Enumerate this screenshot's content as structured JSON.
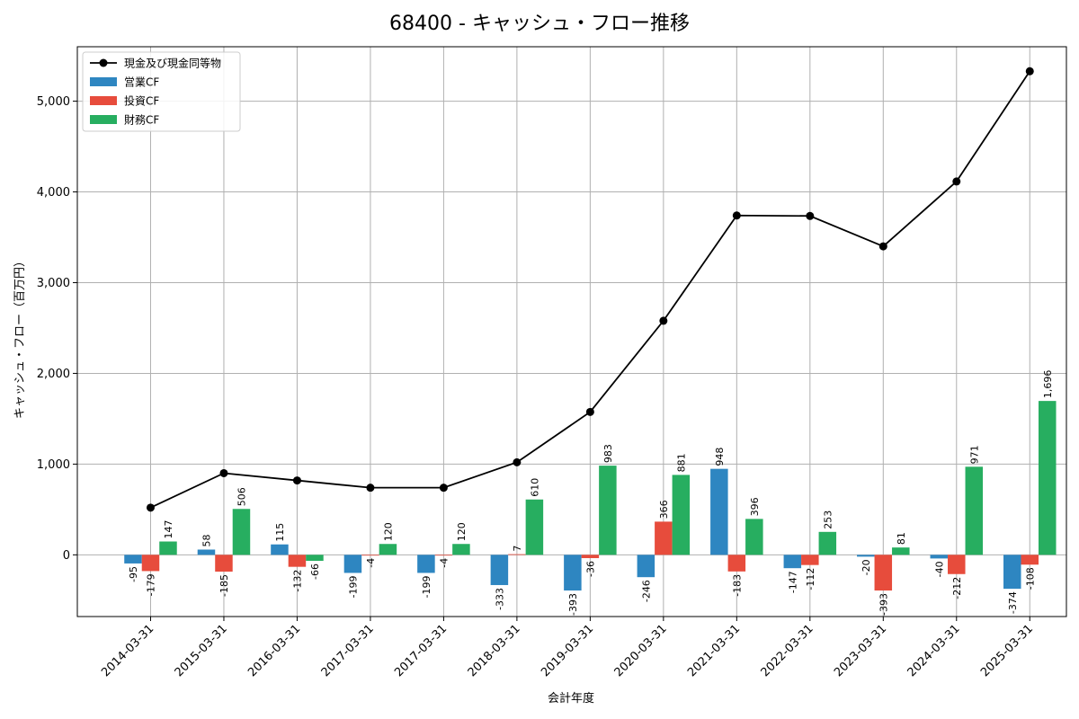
{
  "chart_data": {
    "type": "bar+line",
    "title": "68400 - キャッシュ・フロー推移",
    "xlabel": "会計年度",
    "ylabel": "キャッシュ・フロー（百万円）",
    "ylim": [
      -680,
      5600
    ],
    "yticks": [
      0,
      1000,
      2000,
      3000,
      4000,
      5000
    ],
    "ytick_labels": [
      "0",
      "1,000",
      "2,000",
      "3,000",
      "4,000",
      "5,000"
    ],
    "grid": true,
    "legend_position": "top-left",
    "categories": [
      "2014-03-31",
      "2015-03-31",
      "2016-03-31",
      "2017-03-31",
      "2017-03-31",
      "2018-03-31",
      "2019-03-31",
      "2020-03-31",
      "2021-03-31",
      "2022-03-31",
      "2023-03-31",
      "2024-03-31",
      "2025-03-31"
    ],
    "series": [
      {
        "name": "営業CF",
        "kind": "bar",
        "color": "#2e86c1",
        "values": [
          -95,
          58,
          115,
          -199,
          -199,
          -333,
          -393,
          -246,
          948,
          -147,
          -20,
          -40,
          -374
        ],
        "labels": [
          "-95",
          "58",
          "115",
          "-199",
          "-199",
          "-333",
          "-393",
          "-246",
          "948",
          "-147",
          "-20",
          "-40",
          "-374"
        ]
      },
      {
        "name": "投資CF",
        "kind": "bar",
        "color": "#e74c3c",
        "values": [
          -179,
          -185,
          -132,
          -4,
          -4,
          7,
          -36,
          366,
          -183,
          -112,
          -393,
          -212,
          -108
        ],
        "labels": [
          "-179",
          "-185",
          "-132",
          "-4",
          "-4",
          "7",
          "-36",
          "366",
          "-183",
          "-112",
          "-393",
          "-212",
          "-108"
        ]
      },
      {
        "name": "財務CF",
        "kind": "bar",
        "color": "#27ae60",
        "values": [
          147,
          506,
          -66,
          120,
          120,
          610,
          983,
          881,
          396,
          253,
          81,
          971,
          1696
        ],
        "labels": [
          "147",
          "506",
          "-66",
          "120",
          "120",
          "610",
          "983",
          "881",
          "396",
          "253",
          "81",
          "971",
          "1,696"
        ]
      },
      {
        "name": "現金及び現金同等物",
        "kind": "line",
        "color": "#000000",
        "values": [
          520,
          900,
          820,
          740,
          740,
          1020,
          1575,
          2580,
          3740,
          3735,
          3400,
          4115,
          5330
        ]
      }
    ]
  }
}
